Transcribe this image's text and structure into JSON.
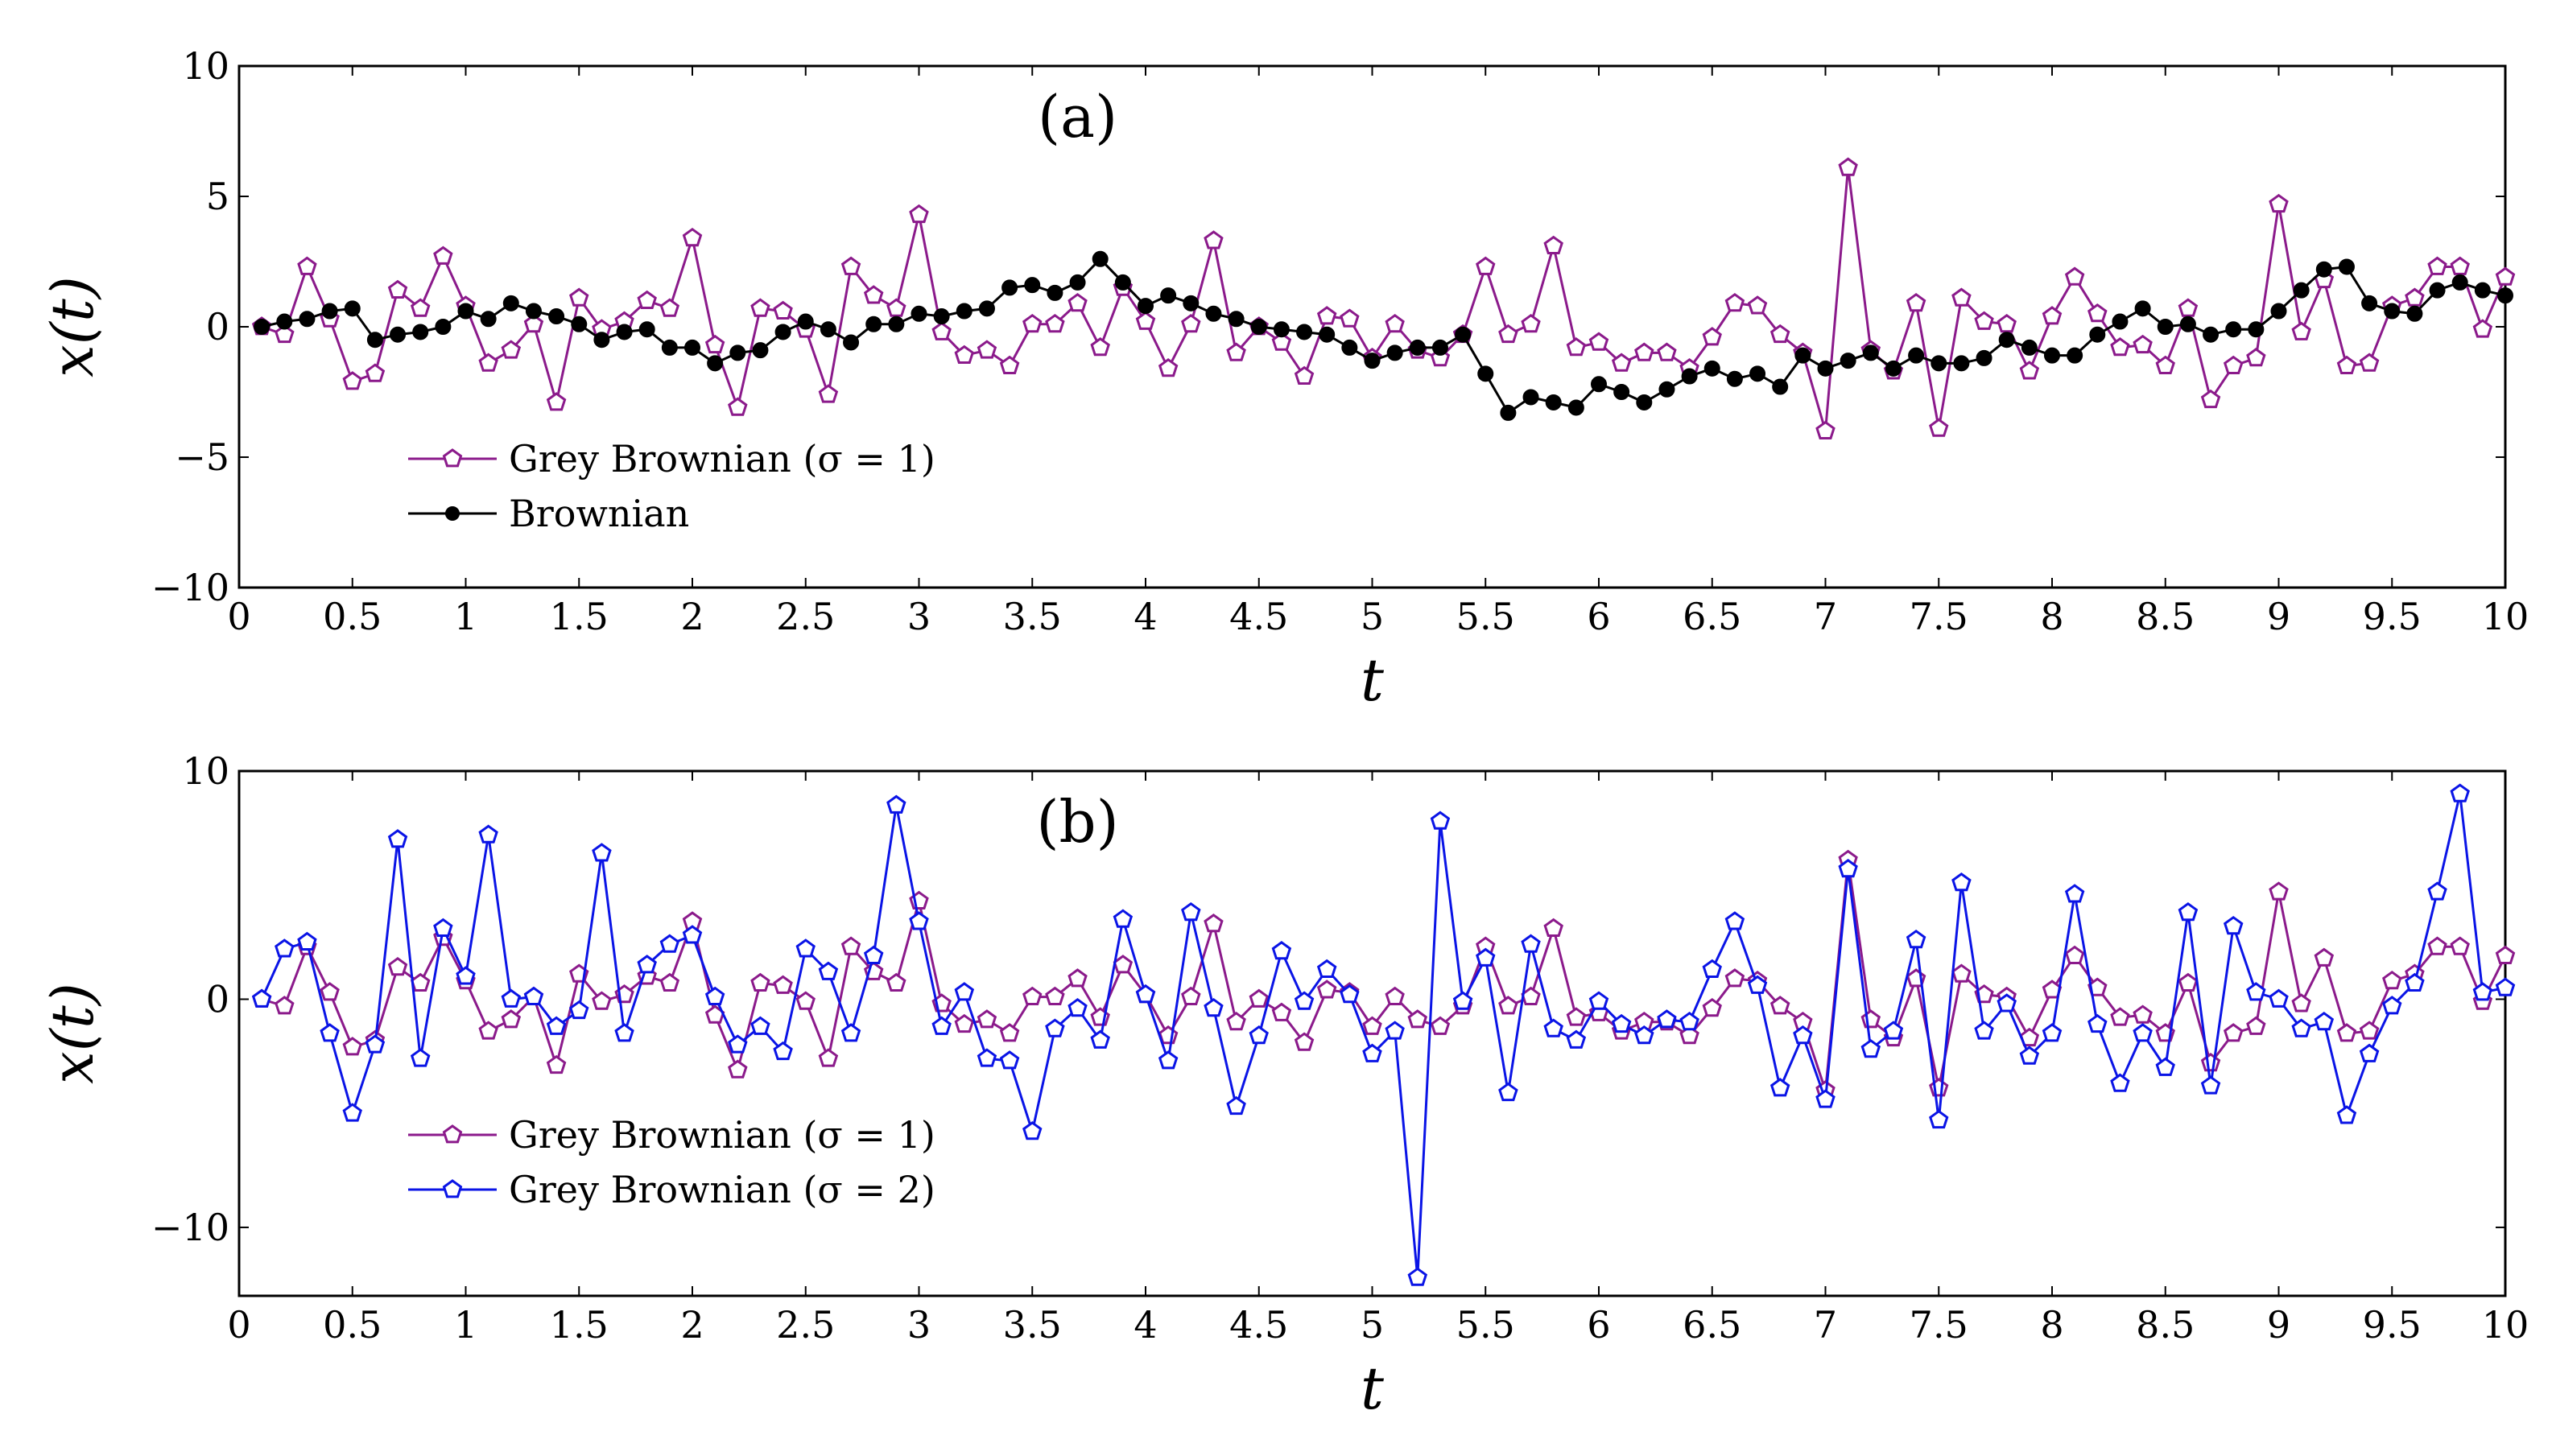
{
  "chart_data": [
    {
      "type": "line",
      "panel_label": "(a)",
      "xlabel": "t",
      "ylabel": "x(t)",
      "xlim": [
        0,
        10
      ],
      "ylim": [
        -10,
        10
      ],
      "x_ticks": [
        "0",
        "0.5",
        "1",
        "1.5",
        "2",
        "2.5",
        "3",
        "3.5",
        "4",
        "4.5",
        "5",
        "5.5",
        "6",
        "6.5",
        "7",
        "7.5",
        "8",
        "8.5",
        "9",
        "9.5",
        "10"
      ],
      "y_ticks": [
        "10",
        "5",
        "0",
        "−5",
        "−10"
      ],
      "y_tick_values": [
        10,
        5,
        0,
        -5,
        -10
      ],
      "legend_position": "lower-left",
      "x": [
        0.1,
        0.2,
        0.3,
        0.4,
        0.5,
        0.6,
        0.7,
        0.8,
        0.9,
        1.0,
        1.1,
        1.2,
        1.3,
        1.4,
        1.5,
        1.6,
        1.7,
        1.8,
        1.9,
        2.0,
        2.1,
        2.2,
        2.3,
        2.4,
        2.5,
        2.6,
        2.7,
        2.8,
        2.9,
        3.0,
        3.1,
        3.2,
        3.3,
        3.4,
        3.5,
        3.6,
        3.7,
        3.8,
        3.9,
        4.0,
        4.1,
        4.2,
        4.3,
        4.4,
        4.5,
        4.6,
        4.7,
        4.8,
        4.9,
        5.0,
        5.1,
        5.2,
        5.3,
        5.4,
        5.5,
        5.6,
        5.7,
        5.8,
        5.9,
        6.0,
        6.1,
        6.2,
        6.3,
        6.4,
        6.5,
        6.6,
        6.7,
        6.8,
        6.9,
        7.0,
        7.1,
        7.2,
        7.3,
        7.4,
        7.5,
        7.6,
        7.7,
        7.8,
        7.9,
        8.0,
        8.1,
        8.2,
        8.3,
        8.4,
        8.5,
        8.6,
        8.7,
        8.8,
        8.9,
        9.0,
        9.1,
        9.2,
        9.3,
        9.4,
        9.5,
        9.6,
        9.7,
        9.8,
        9.9,
        10.0
      ],
      "series": [
        {
          "name": "Grey Brownian (σ = 1)",
          "color": "#8b1a8b",
          "marker": "pentagon",
          "values": [
            0.0,
            -0.3,
            2.3,
            0.3,
            -2.1,
            -1.8,
            1.4,
            0.7,
            2.7,
            0.8,
            -1.4,
            -0.9,
            0.1,
            -2.9,
            1.1,
            -0.1,
            0.2,
            1.0,
            0.7,
            3.4,
            -0.7,
            -3.1,
            0.7,
            0.6,
            -0.1,
            -2.6,
            2.3,
            1.2,
            0.7,
            4.3,
            -0.2,
            -1.1,
            -0.9,
            -1.5,
            0.1,
            0.1,
            0.9,
            -0.8,
            1.5,
            0.2,
            -1.6,
            0.1,
            3.3,
            -1.0,
            0.0,
            -0.6,
            -1.9,
            0.4,
            0.3,
            -1.2,
            0.1,
            -0.9,
            -1.2,
            -0.3,
            2.3,
            -0.3,
            0.1,
            3.1,
            -0.8,
            -0.6,
            -1.4,
            -1.0,
            -1.0,
            -1.6,
            -0.4,
            0.9,
            0.8,
            -0.3,
            -1.0,
            -4.0,
            6.1,
            -0.9,
            -1.7,
            0.9,
            -3.9,
            1.1,
            0.2,
            0.1,
            -1.7,
            0.4,
            1.9,
            0.5,
            -0.8,
            -0.7,
            -1.5,
            0.7,
            -2.8,
            -1.5,
            -1.2,
            4.7,
            -0.2,
            1.8,
            -1.5,
            -1.4,
            0.8,
            1.1,
            2.3,
            2.3,
            -0.1,
            1.9
          ]
        },
        {
          "name": "Brownian",
          "color": "#000000",
          "marker": "dot",
          "values": [
            0.0,
            0.2,
            0.3,
            0.6,
            0.7,
            -0.5,
            -0.3,
            -0.2,
            0.0,
            0.6,
            0.3,
            0.9,
            0.6,
            0.4,
            0.1,
            -0.5,
            -0.2,
            -0.1,
            -0.8,
            -0.8,
            -1.4,
            -1.0,
            -0.9,
            -0.2,
            0.2,
            -0.1,
            -0.6,
            0.1,
            0.1,
            0.5,
            0.4,
            0.6,
            0.7,
            1.5,
            1.6,
            1.3,
            1.7,
            2.6,
            1.7,
            0.8,
            1.2,
            0.9,
            0.5,
            0.3,
            0.0,
            -0.1,
            -0.2,
            -0.3,
            -0.8,
            -1.3,
            -1.0,
            -0.8,
            -0.8,
            -0.3,
            -1.8,
            -3.3,
            -2.7,
            -2.9,
            -3.1,
            -2.2,
            -2.5,
            -2.9,
            -2.4,
            -1.9,
            -1.6,
            -2.0,
            -1.8,
            -2.3,
            -1.1,
            -1.6,
            -1.3,
            -1.0,
            -1.6,
            -1.1,
            -1.4,
            -1.4,
            -1.2,
            -0.5,
            -0.8,
            -1.1,
            -1.1,
            -0.3,
            0.2,
            0.7,
            0.0,
            0.1,
            -0.3,
            -0.1,
            -0.1,
            0.6,
            1.4,
            2.2,
            2.3,
            0.9,
            0.6,
            0.5,
            1.4,
            1.7,
            1.4,
            1.2
          ]
        }
      ]
    },
    {
      "type": "line",
      "panel_label": "(b)",
      "xlabel": "t",
      "ylabel": "x(t)",
      "xlim": [
        0,
        10
      ],
      "ylim": [
        -13,
        10
      ],
      "x_ticks": [
        "0",
        "0.5",
        "1",
        "1.5",
        "2",
        "2.5",
        "3",
        "3.5",
        "4",
        "4.5",
        "5",
        "5.5",
        "6",
        "6.5",
        "7",
        "7.5",
        "8",
        "8.5",
        "9",
        "9.5",
        "10"
      ],
      "y_ticks": [
        "10",
        "0",
        "−10"
      ],
      "y_tick_values": [
        10,
        0,
        -10
      ],
      "legend_position": "lower-left",
      "x": [
        0.1,
        0.2,
        0.3,
        0.4,
        0.5,
        0.6,
        0.7,
        0.8,
        0.9,
        1.0,
        1.1,
        1.2,
        1.3,
        1.4,
        1.5,
        1.6,
        1.7,
        1.8,
        1.9,
        2.0,
        2.1,
        2.2,
        2.3,
        2.4,
        2.5,
        2.6,
        2.7,
        2.8,
        2.9,
        3.0,
        3.1,
        3.2,
        3.3,
        3.4,
        3.5,
        3.6,
        3.7,
        3.8,
        3.9,
        4.0,
        4.1,
        4.2,
        4.3,
        4.4,
        4.5,
        4.6,
        4.7,
        4.8,
        4.9,
        5.0,
        5.1,
        5.2,
        5.3,
        5.4,
        5.5,
        5.6,
        5.7,
        5.8,
        5.9,
        6.0,
        6.1,
        6.2,
        6.3,
        6.4,
        6.5,
        6.6,
        6.7,
        6.8,
        6.9,
        7.0,
        7.1,
        7.2,
        7.3,
        7.4,
        7.5,
        7.6,
        7.7,
        7.8,
        7.9,
        8.0,
        8.1,
        8.2,
        8.3,
        8.4,
        8.5,
        8.6,
        8.7,
        8.8,
        8.9,
        9.0,
        9.1,
        9.2,
        9.3,
        9.4,
        9.5,
        9.6,
        9.7,
        9.8,
        9.9,
        10.0
      ],
      "series": [
        {
          "name": "Grey Brownian (σ = 1)",
          "color": "#8b1a8b",
          "marker": "pentagon",
          "values": [
            0.0,
            -0.3,
            2.3,
            0.3,
            -2.1,
            -1.8,
            1.4,
            0.7,
            2.7,
            0.8,
            -1.4,
            -0.9,
            0.1,
            -2.9,
            1.1,
            -0.1,
            0.2,
            1.0,
            0.7,
            3.4,
            -0.7,
            -3.1,
            0.7,
            0.6,
            -0.1,
            -2.6,
            2.3,
            1.2,
            0.7,
            4.3,
            -0.2,
            -1.1,
            -0.9,
            -1.5,
            0.1,
            0.1,
            0.9,
            -0.8,
            1.5,
            0.2,
            -1.6,
            0.1,
            3.3,
            -1.0,
            0.0,
            -0.6,
            -1.9,
            0.4,
            0.3,
            -1.2,
            0.1,
            -0.9,
            -1.2,
            -0.3,
            2.3,
            -0.3,
            0.1,
            3.1,
            -0.8,
            -0.6,
            -1.4,
            -1.0,
            -1.0,
            -1.6,
            -0.4,
            0.9,
            0.8,
            -0.3,
            -1.0,
            -4.0,
            6.1,
            -0.9,
            -1.7,
            0.9,
            -3.9,
            1.1,
            0.2,
            0.1,
            -1.7,
            0.4,
            1.9,
            0.5,
            -0.8,
            -0.7,
            -1.5,
            0.7,
            -2.8,
            -1.5,
            -1.2,
            4.7,
            -0.2,
            1.8,
            -1.5,
            -1.4,
            0.8,
            1.1,
            2.3,
            2.3,
            -0.1,
            1.9
          ]
        },
        {
          "name": "Grey Brownian (σ = 2)",
          "color": "#0a14e6",
          "marker": "pentagon",
          "values": [
            0.0,
            2.2,
            2.5,
            -1.5,
            -5.0,
            -2.0,
            7.0,
            -2.6,
            3.1,
            1.0,
            7.2,
            0.0,
            0.1,
            -1.2,
            -0.5,
            6.4,
            -1.5,
            1.5,
            2.4,
            2.8,
            0.1,
            -2.0,
            -1.2,
            -2.3,
            2.2,
            1.2,
            -1.5,
            1.9,
            8.5,
            3.4,
            -1.2,
            0.3,
            -2.6,
            -2.7,
            -5.8,
            -1.3,
            -0.4,
            -1.8,
            3.5,
            0.2,
            -2.7,
            3.8,
            -0.4,
            -4.7,
            -1.6,
            2.1,
            -0.1,
            1.3,
            0.2,
            -2.4,
            -1.4,
            -12.2,
            7.8,
            -0.1,
            1.8,
            -4.1,
            2.4,
            -1.3,
            -1.8,
            -0.1,
            -1.1,
            -1.6,
            -0.9,
            -1.0,
            1.3,
            3.4,
            0.6,
            -3.9,
            -1.6,
            -4.4,
            5.7,
            -2.2,
            -1.4,
            2.6,
            -5.3,
            5.1,
            -1.4,
            -0.2,
            -2.5,
            -1.5,
            4.6,
            -1.1,
            -3.7,
            -1.5,
            -3.0,
            3.8,
            -3.8,
            3.2,
            0.3,
            0.0,
            -1.3,
            -1.0,
            -5.1,
            -2.4,
            -0.3,
            0.7,
            4.7,
            9.0,
            0.3,
            0.5
          ]
        }
      ]
    }
  ]
}
